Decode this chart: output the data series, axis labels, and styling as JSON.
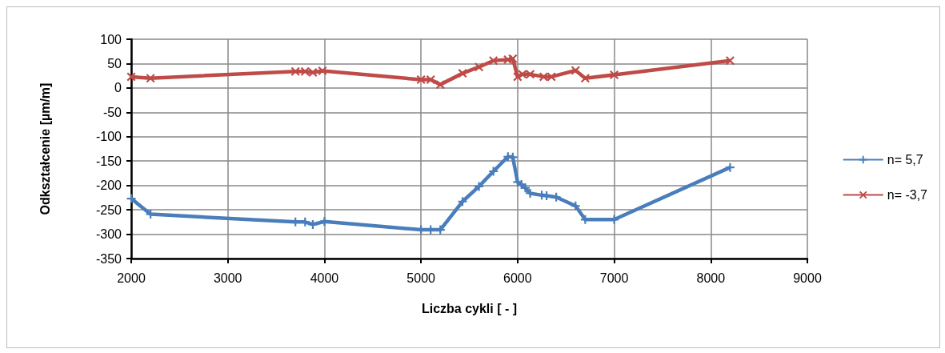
{
  "chart_data": {
    "type": "line",
    "xlabel": "Liczba cykli [ - ]",
    "ylabel": "Odkształcenie [µm/m]",
    "xlim": [
      2000,
      9000
    ],
    "xticks": [
      2000,
      3000,
      4000,
      5000,
      6000,
      7000,
      8000,
      9000
    ],
    "ylim": [
      -350,
      100
    ],
    "yticks": [
      -350,
      -300,
      -250,
      -200,
      -150,
      -100,
      -50,
      0,
      50,
      100
    ],
    "grid": true,
    "legend": "right",
    "line_style": "solid",
    "series": [
      {
        "name": "n= 5,7",
        "color": "#4a7ebb",
        "marker": "plus",
        "x": [
          2000,
          2200,
          3700,
          3800,
          3880,
          4000,
          5000,
          5100,
          5200,
          5430,
          5600,
          5750,
          5900,
          5950,
          6000,
          6040,
          6080,
          6130,
          6250,
          6300,
          6400,
          6600,
          6700,
          7000,
          8200
        ],
        "values": [
          -227,
          -259,
          -275,
          -275,
          -280,
          -274,
          -291,
          -291,
          -291,
          -233,
          -202,
          -171,
          -141,
          -142,
          -193,
          -198,
          -205,
          -216,
          -220,
          -221,
          -224,
          -242,
          -270,
          -270,
          -163
        ]
      },
      {
        "name": "n= -3,7",
        "color": "#be4b48",
        "marker": "cross",
        "x": [
          2000,
          2200,
          3700,
          3800,
          3880,
          3980,
          5000,
          5100,
          5200,
          5430,
          5600,
          5750,
          5900,
          5950,
          6000,
          6050,
          6130,
          6270,
          6350,
          6600,
          6700,
          7000,
          8200
        ],
        "values": [
          23,
          20,
          34,
          34,
          32,
          35,
          17,
          17,
          7,
          30,
          43,
          56,
          58,
          60,
          23,
          28,
          28,
          23,
          23,
          36,
          20,
          27,
          56
        ]
      }
    ]
  }
}
